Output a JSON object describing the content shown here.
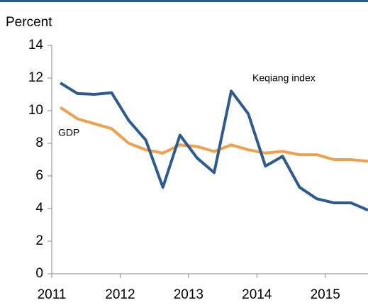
{
  "chart_data": {
    "type": "line",
    "y_label": "Percent",
    "annotations": [
      "Keqiang index",
      "GDP"
    ],
    "x": [
      2011.125,
      2011.375,
      2011.625,
      2011.875,
      2012.125,
      2012.375,
      2012.625,
      2012.875,
      2013.125,
      2013.375,
      2013.625,
      2013.875,
      2014.125,
      2014.375,
      2014.625,
      2014.875,
      2015.125,
      2015.375,
      2015.625
    ],
    "series": [
      {
        "name": "Keqiang index",
        "color": "#2e5b8f",
        "values": [
          11.7,
          11.05,
          11.0,
          11.1,
          9.4,
          8.2,
          5.3,
          8.5,
          7.1,
          6.2,
          11.2,
          9.8,
          6.6,
          7.2,
          5.3,
          4.6,
          4.35,
          4.35,
          3.9
        ]
      },
      {
        "name": "GDP",
        "color": "#f0a04b",
        "values": [
          10.2,
          9.5,
          9.2,
          8.9,
          8.0,
          7.6,
          7.4,
          7.9,
          7.8,
          7.5,
          7.9,
          7.6,
          7.4,
          7.5,
          7.3,
          7.3,
          7.0,
          7.0,
          6.9
        ]
      }
    ],
    "xlim": [
      2011,
      2015.625
    ],
    "xticks": [
      2011,
      2012,
      2013,
      2014,
      2015
    ],
    "ylim": [
      0,
      14
    ],
    "yticks": [
      0,
      2,
      4,
      6,
      8,
      10,
      12,
      14
    ]
  }
}
